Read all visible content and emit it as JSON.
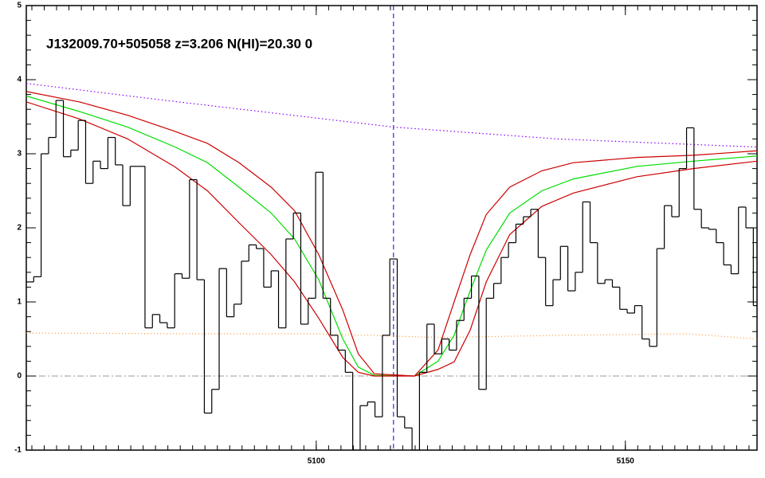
{
  "chart_data": {
    "type": "line",
    "title": "J132009.70+505058 z=3.206 N(HI)=20.30 0",
    "xlim": [
      5053.1,
      5171.3
    ],
    "xticks": [
      5100,
      5150
    ],
    "xminor": 25,
    "ylim": [
      -1,
      5
    ],
    "yticks": [
      -1,
      0,
      1,
      2,
      3,
      4,
      5
    ],
    "yminor": 5,
    "zero_line": 0,
    "center_line": 5112.5,
    "flux": {
      "color": "#000000",
      "x": [
        5053.1,
        5054.3,
        5055.5,
        5056.7,
        5057.9,
        5059.1,
        5060.3,
        5061.5,
        5062.7,
        5063.9,
        5065.1,
        5066.3,
        5067.5,
        5068.7,
        5069.9,
        5071.1,
        5072.3,
        5073.5,
        5074.7,
        5075.9,
        5077.1,
        5078.3,
        5079.5,
        5080.7,
        5081.9,
        5083.1,
        5084.3,
        5085.5,
        5086.7,
        5087.9,
        5089.1,
        5090.3,
        5091.5,
        5092.7,
        5093.9,
        5095.1,
        5096.3,
        5097.5,
        5098.7,
        5099.9,
        5101.1,
        5102.3,
        5103.5,
        5104.7,
        5105.9,
        5107.1,
        5108.3,
        5109.5,
        5110.7,
        5111.9,
        5113.1,
        5114.3,
        5115.5,
        5116.7,
        5117.9,
        5119.1,
        5120.3,
        5121.5,
        5122.7,
        5123.9,
        5125.1,
        5126.3,
        5127.5,
        5128.7,
        5129.9,
        5131.1,
        5132.3,
        5133.5,
        5134.7,
        5135.9,
        5137.1,
        5138.3,
        5139.5,
        5140.7,
        5141.9,
        5143.1,
        5144.3,
        5145.5,
        5146.7,
        5147.9,
        5149.1,
        5150.3,
        5151.5,
        5152.7,
        5153.9,
        5155.1,
        5156.3,
        5157.5,
        5158.7,
        5159.9,
        5161.1,
        5162.3,
        5163.5,
        5164.7,
        5165.9,
        5167.1,
        5168.3,
        5169.5,
        5170.7
      ],
      "values": [
        1.27,
        1.34,
        3.0,
        3.22,
        3.72,
        2.96,
        3.05,
        3.45,
        2.6,
        2.9,
        2.8,
        3.22,
        2.85,
        2.3,
        2.83,
        2.83,
        0.65,
        0.83,
        0.72,
        0.65,
        1.38,
        1.32,
        2.65,
        1.3,
        -0.5,
        -0.18,
        1.45,
        0.8,
        0.97,
        1.55,
        1.77,
        1.72,
        1.2,
        1.42,
        0.65,
        1.85,
        2.2,
        0.7,
        1.05,
        2.75,
        1.05,
        0.55,
        0.35,
        0.05,
        -1.0,
        -0.4,
        -0.35,
        -0.55,
        0.55,
        1.58,
        -0.55,
        -0.7,
        -1.0,
        0.05,
        0.7,
        0.3,
        0.5,
        0.35,
        0.75,
        1.05,
        1.35,
        -0.18,
        1.05,
        1.25,
        1.6,
        1.8,
        2.05,
        2.15,
        2.25,
        1.6,
        0.95,
        1.3,
        1.75,
        1.15,
        1.4,
        2.35,
        1.8,
        1.25,
        1.3,
        1.2,
        0.9,
        0.85,
        0.95,
        0.5,
        0.4,
        1.72,
        2.3,
        2.15,
        2.8,
        3.35,
        2.25,
        2.0,
        1.98,
        1.8,
        1.5,
        1.38,
        2.28,
        2.0,
        0.95
      ]
    },
    "model_x": [
      5053.1,
      5061.7,
      5069.5,
      5077.2,
      5082.4,
      5087.5,
      5092.7,
      5096.5,
      5100.4,
      5104.3,
      5106.8,
      5109.4,
      5115.9,
      5119.7,
      5122.3,
      5124.9,
      5127.5,
      5131.3,
      5136.5,
      5141.6,
      5151.9,
      5161.0,
      5171.3
    ],
    "models": [
      {
        "color": "#00dd00",
        "values": [
          3.78,
          3.57,
          3.36,
          3.09,
          2.88,
          2.55,
          2.2,
          1.85,
          1.3,
          0.5,
          0.12,
          0.01,
          0,
          0.2,
          0.55,
          1.15,
          1.7,
          2.2,
          2.5,
          2.66,
          2.83,
          2.9,
          2.97
        ]
      },
      {
        "color": "#cc0000",
        "values": [
          3.84,
          3.7,
          3.52,
          3.3,
          3.14,
          2.88,
          2.55,
          2.23,
          1.64,
          0.89,
          0.3,
          0.03,
          0,
          0.35,
          1.0,
          1.64,
          2.18,
          2.55,
          2.77,
          2.88,
          2.95,
          2.98,
          3.04
        ]
      },
      {
        "color": "#cc0000",
        "values": [
          3.7,
          3.47,
          3.2,
          2.82,
          2.5,
          2.07,
          1.64,
          1.27,
          0.78,
          0.25,
          0.05,
          0,
          0,
          0.09,
          0.19,
          0.62,
          1.27,
          1.91,
          2.29,
          2.47,
          2.69,
          2.8,
          2.9
        ]
      }
    ],
    "continuum": {
      "color": "#8800ff",
      "x": [
        5053.1,
        5074.6,
        5112.5,
        5139.0,
        5171.3
      ],
      "values": [
        3.95,
        3.73,
        3.36,
        3.2,
        3.09
      ]
    },
    "error": {
      "color": "#ff9933",
      "x": [
        5053.1,
        5080,
        5100,
        5120,
        5140,
        5160,
        5171.3
      ],
      "values": [
        0.58,
        0.57,
        0.57,
        0.52,
        0.55,
        0.57,
        0.5
      ]
    }
  }
}
